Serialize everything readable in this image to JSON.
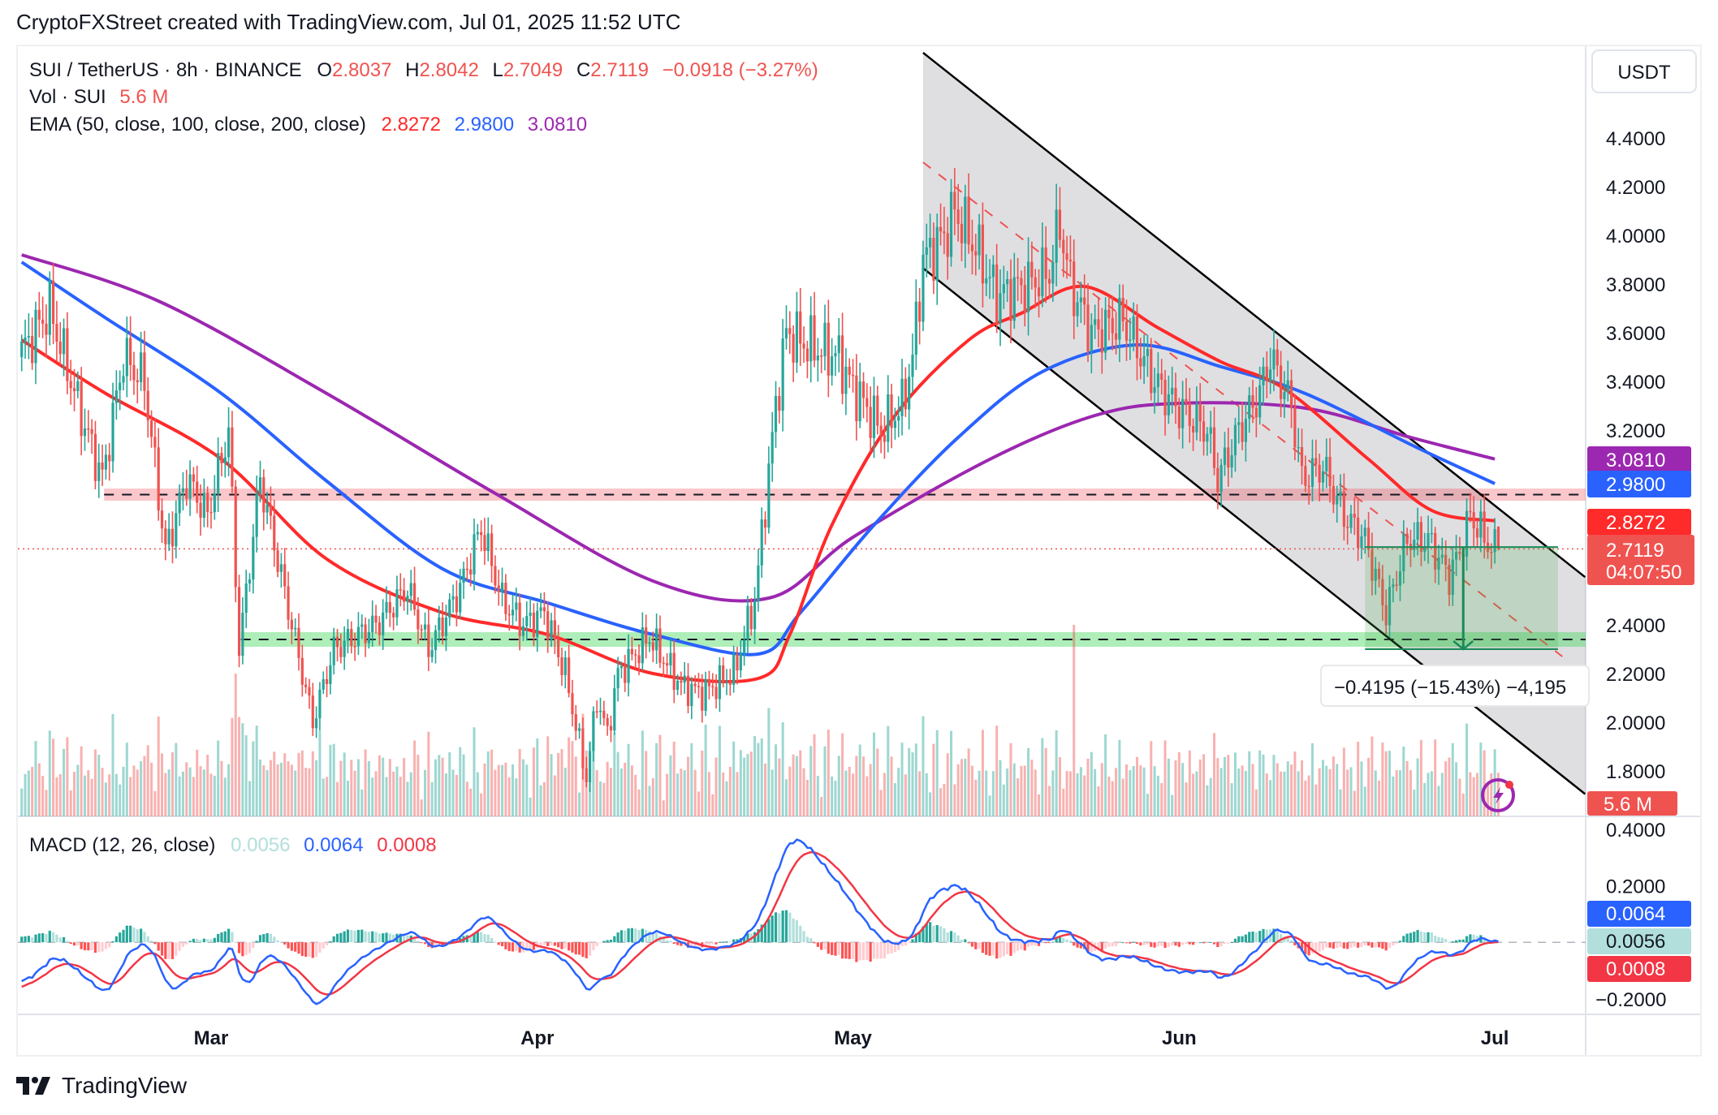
{
  "caption": "CryptoFXStreet created with TradingView.com, Jul 01, 2025 11:52 UTC",
  "header": {
    "symbol": "SUI / TetherUS · 8h · BINANCE",
    "o_label": "O",
    "open": "2.8037",
    "h_label": "H",
    "high": "2.8042",
    "l_label": "L",
    "low": "2.7049",
    "c_label": "C",
    "close": "2.7119",
    "change": "−0.0918 (−3.27%)",
    "vol_label": "Vol · SUI",
    "vol_value": "5.6 M",
    "ema_label": "EMA (50, close, 100, close, 200, close)",
    "ema50": "2.8272",
    "ema100": "2.9800",
    "ema200": "3.0810"
  },
  "macd_legend": {
    "label": "MACD (12, 26, close)",
    "hist": "0.0056",
    "macd": "0.0064",
    "signal": "0.0008"
  },
  "currency_button": "USDT",
  "price_axis": {
    "ticks": [
      "4.4000",
      "4.2000",
      "4.0000",
      "3.8000",
      "3.6000",
      "3.4000",
      "3.2000",
      "2.4000",
      "2.2000",
      "2.0000",
      "1.8000"
    ]
  },
  "price_tags": {
    "ema200": "3.0810",
    "ema100": "2.9800",
    "ema50": "2.8272",
    "last": "2.7119",
    "countdown": "04:07:50",
    "volume": "5.6 M"
  },
  "macd_axis": {
    "ticks": [
      "0.4000",
      "0.2000",
      "−0.2000"
    ]
  },
  "macd_tags": {
    "macd": "0.0064",
    "hist": "0.0056",
    "signal": "0.0008"
  },
  "time_axis": [
    "Mar",
    "Apr",
    "May",
    "Jun",
    "Jul"
  ],
  "measure_label": "−0.4195 (−15.43%) −4,195",
  "footer_logo": "TradingView",
  "colors": {
    "up": "#26a69a",
    "down": "#ef5350",
    "ema50": "#ff2a2a",
    "ema100": "#2962ff",
    "ema200": "#9c27b0",
    "macd": "#2962ff",
    "signal": "#f23645",
    "hist_up": "#26a69a",
    "hist_up_weak": "#b2dfdb",
    "hist_down": "#ff5252",
    "hist_down_weak": "#ffcdd2"
  },
  "chart_data": {
    "type": "candlestick",
    "interval": "8h",
    "ylim": [
      1.7,
      4.55
    ],
    "macd_ylim": [
      -0.25,
      0.42
    ],
    "price_path": [
      [
        "2025-02-11",
        3.5
      ],
      [
        "2025-02-14",
        3.7
      ],
      [
        "2025-02-17",
        3.26
      ],
      [
        "2025-02-19",
        3.0
      ],
      [
        "2025-02-21",
        3.5
      ],
      [
        "2025-02-23",
        3.4
      ],
      [
        "2025-02-25",
        2.7
      ],
      [
        "2025-02-27",
        3.0
      ],
      [
        "2025-03-01",
        2.85
      ],
      [
        "2025-03-03",
        3.2
      ],
      [
        "2025-03-04",
        2.3
      ],
      [
        "2025-03-06",
        3.0
      ],
      [
        "2025-03-08",
        2.6
      ],
      [
        "2025-03-11",
        2.0
      ],
      [
        "2025-03-13",
        2.3
      ],
      [
        "2025-03-17",
        2.4
      ],
      [
        "2025-03-20",
        2.55
      ],
      [
        "2025-03-22",
        2.3
      ],
      [
        "2025-03-25",
        2.55
      ],
      [
        "2025-03-27",
        2.8
      ],
      [
        "2025-03-29",
        2.5
      ],
      [
        "2025-03-31",
        2.4
      ],
      [
        "2025-04-02",
        2.45
      ],
      [
        "2025-04-04",
        2.2
      ],
      [
        "2025-04-06",
        1.77
      ],
      [
        "2025-04-07",
        2.1
      ],
      [
        "2025-04-08",
        1.95
      ],
      [
        "2025-04-09",
        2.2
      ],
      [
        "2025-04-11",
        2.3
      ],
      [
        "2025-04-12",
        2.35
      ],
      [
        "2025-04-15",
        2.15
      ],
      [
        "2025-04-17",
        2.12
      ],
      [
        "2025-04-20",
        2.2
      ],
      [
        "2025-04-22",
        2.5
      ],
      [
        "2025-04-23",
        2.9
      ],
      [
        "2025-04-24",
        3.3
      ],
      [
        "2025-04-25",
        3.6
      ],
      [
        "2025-04-27",
        3.55
      ],
      [
        "2025-04-30",
        3.5
      ],
      [
        "2025-05-01",
        3.4
      ],
      [
        "2025-05-04",
        3.2
      ],
      [
        "2025-05-06",
        3.3
      ],
      [
        "2025-05-07",
        3.5
      ],
      [
        "2025-05-08",
        3.9
      ],
      [
        "2025-05-10",
        4.0
      ],
      [
        "2025-05-11",
        4.1
      ],
      [
        "2025-05-13",
        3.95
      ],
      [
        "2025-05-15",
        3.75
      ],
      [
        "2025-05-18",
        3.8
      ],
      [
        "2025-05-20",
        3.85
      ],
      [
        "2025-05-21",
        4.05
      ],
      [
        "2025-05-22",
        3.8
      ],
      [
        "2025-05-24",
        3.6
      ],
      [
        "2025-05-27",
        3.65
      ],
      [
        "2025-05-30",
        3.4
      ],
      [
        "2025-06-01",
        3.3
      ],
      [
        "2025-06-04",
        3.2
      ],
      [
        "2025-06-05",
        3.0
      ],
      [
        "2025-06-07",
        3.2
      ],
      [
        "2025-06-09",
        3.35
      ],
      [
        "2025-06-10",
        3.5
      ],
      [
        "2025-06-12",
        3.3
      ],
      [
        "2025-06-13",
        3.0
      ],
      [
        "2025-06-15",
        3.05
      ],
      [
        "2025-06-17",
        2.85
      ],
      [
        "2025-06-19",
        2.75
      ],
      [
        "2025-06-21",
        2.45
      ],
      [
        "2025-06-23",
        2.75
      ],
      [
        "2025-06-25",
        2.75
      ],
      [
        "2025-06-27",
        2.6
      ],
      [
        "2025-06-28",
        2.7
      ],
      [
        "2025-06-29",
        2.85
      ],
      [
        "2025-07-01",
        2.7119
      ]
    ],
    "last_candle": {
      "date": "2025-07-01T08:00",
      "open": 2.8037,
      "high": 2.8042,
      "low": 2.7049,
      "close": 2.7119
    },
    "ema50": [
      [
        "2025-02-11",
        3.57
      ],
      [
        "2025-02-19",
        3.35
      ],
      [
        "2025-03-02",
        3.08
      ],
      [
        "2025-03-12",
        2.67
      ],
      [
        "2025-03-23",
        2.45
      ],
      [
        "2025-04-02",
        2.36
      ],
      [
        "2025-04-12",
        2.2
      ],
      [
        "2025-04-22",
        2.18
      ],
      [
        "2025-04-25",
        2.36
      ],
      [
        "2025-04-29",
        2.81
      ],
      [
        "2025-05-05",
        3.26
      ],
      [
        "2025-05-12",
        3.57
      ],
      [
        "2025-05-17",
        3.68
      ],
      [
        "2025-05-23",
        3.79
      ],
      [
        "2025-05-30",
        3.62
      ],
      [
        "2025-06-05",
        3.48
      ],
      [
        "2025-06-11",
        3.37
      ],
      [
        "2025-06-19",
        3.08
      ],
      [
        "2025-06-25",
        2.87
      ],
      [
        "2025-07-01",
        2.8272
      ]
    ],
    "ema100": [
      [
        "2025-02-11",
        3.89
      ],
      [
        "2025-02-19",
        3.66
      ],
      [
        "2025-03-02",
        3.35
      ],
      [
        "2025-03-12",
        2.99
      ],
      [
        "2025-03-23",
        2.63
      ],
      [
        "2025-04-02",
        2.49
      ],
      [
        "2025-04-12",
        2.36
      ],
      [
        "2025-04-22",
        2.28
      ],
      [
        "2025-04-26",
        2.45
      ],
      [
        "2025-05-03",
        2.81
      ],
      [
        "2025-05-11",
        3.17
      ],
      [
        "2025-05-19",
        3.44
      ],
      [
        "2025-05-28",
        3.55
      ],
      [
        "2025-06-05",
        3.46
      ],
      [
        "2025-06-13",
        3.35
      ],
      [
        "2025-06-24",
        3.12
      ],
      [
        "2025-07-01",
        2.98
      ]
    ],
    "ema200": [
      [
        "2025-02-11",
        3.92
      ],
      [
        "2025-02-24",
        3.73
      ],
      [
        "2025-03-12",
        3.35
      ],
      [
        "2025-03-28",
        2.94
      ],
      [
        "2025-04-12",
        2.58
      ],
      [
        "2025-04-23",
        2.51
      ],
      [
        "2025-05-01",
        2.76
      ],
      [
        "2025-05-14",
        3.08
      ],
      [
        "2025-05-24",
        3.26
      ],
      [
        "2025-06-01",
        3.31
      ],
      [
        "2025-06-13",
        3.29
      ],
      [
        "2025-06-23",
        3.17
      ],
      [
        "2025-07-01",
        3.081
      ]
    ],
    "channel": {
      "upper": [
        [
          "2025-05-07T16:00",
          4.75
        ],
        [
          "2025-07-09T14:00",
          2.596
        ]
      ],
      "lower": [
        [
          "2025-05-07T16:00",
          3.865
        ],
        [
          "2025-07-09T14:00",
          1.705
        ]
      ],
      "mid": [
        [
          "2025-05-07T16:00",
          4.3
        ],
        [
          "2025-07-07T10:00",
          2.27
        ]
      ]
    },
    "resistance_zone": {
      "from": "2025-02-18T20:00",
      "low": 2.91,
      "high": 2.96,
      "line": 2.935
    },
    "support_zone": {
      "from": "2025-03-03T20:00",
      "low": 2.31,
      "high": 2.37,
      "line": 2.34
    },
    "measure": {
      "from": "2025-06-18T16:00",
      "to": "2025-07-07T00:00",
      "top": 2.7194,
      "bottom": 2.3,
      "arrow_at": "2025-06-28T00:00"
    },
    "time_ticks": [
      "2025-03-01",
      "2025-04-01",
      "2025-05-01",
      "2025-06-01",
      "2025-07-01"
    ]
  }
}
